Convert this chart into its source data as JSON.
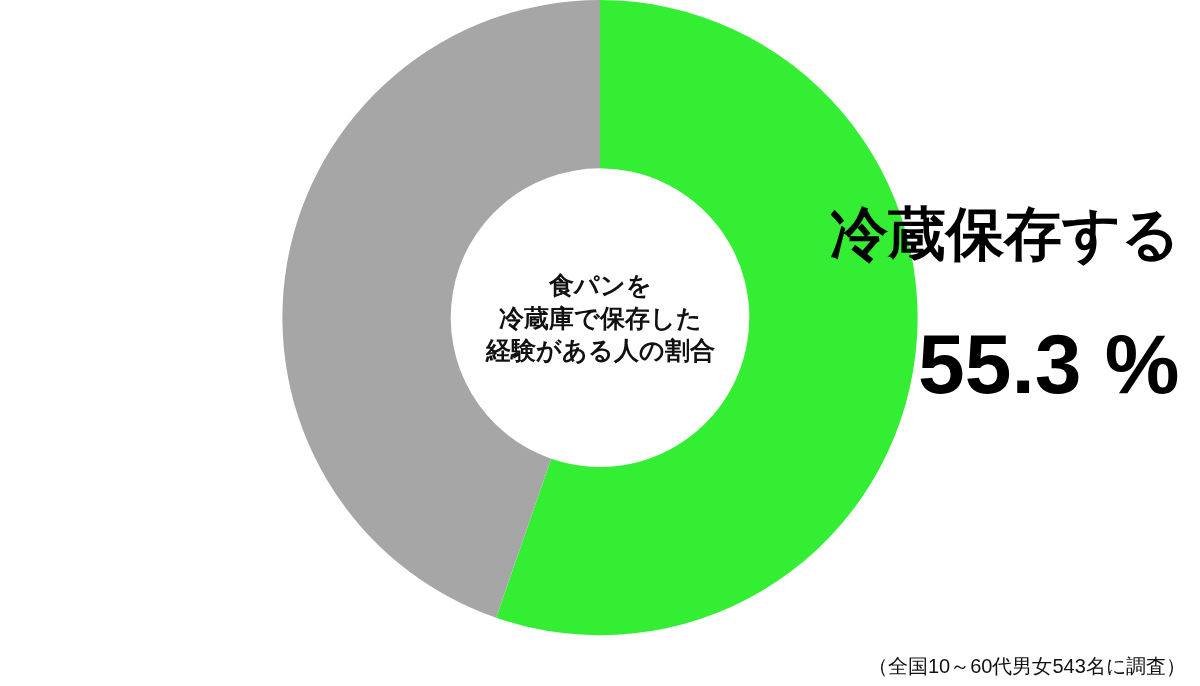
{
  "chart_data": {
    "type": "donut",
    "title": "食パンを冷蔵庫で保存した経験がある人の割合",
    "categories": [
      "冷蔵保存する",
      null
    ],
    "values": [
      55.3,
      44.7
    ],
    "value_labels": [
      "55.3 %",
      null
    ],
    "colors": [
      "#33ee33",
      "#a6a6a6"
    ],
    "annotations": [
      "（全国10～60代男女543名に調査）"
    ]
  }
}
